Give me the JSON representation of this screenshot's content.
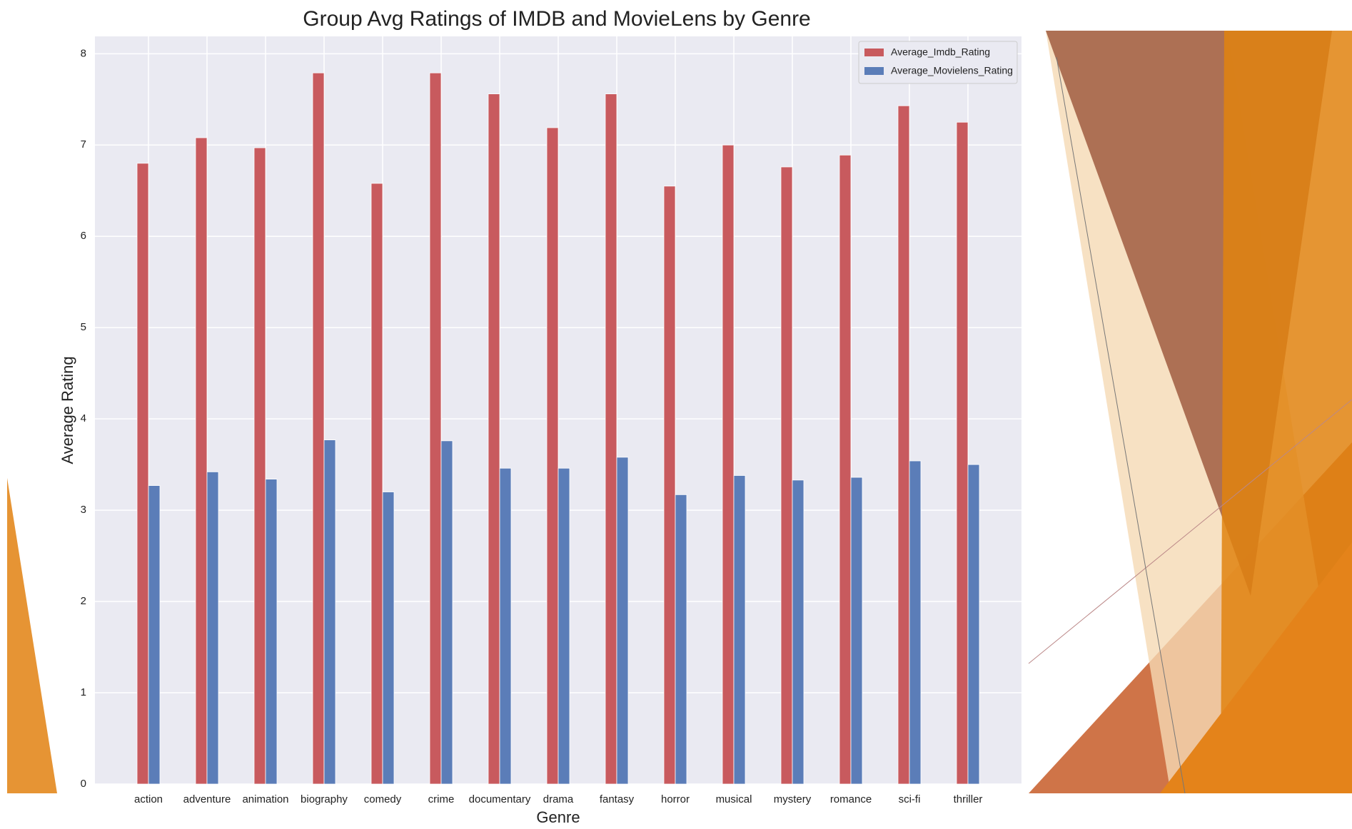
{
  "chart_data": {
    "type": "bar",
    "title": "Group Avg Ratings of IMDB and MovieLens by Genre",
    "x_label": "Genre",
    "y_label": "Average Rating",
    "categories": [
      "action",
      "adventure",
      "animation",
      "biography",
      "comedy",
      "crime",
      "documentary",
      "drama",
      "fantasy",
      "horror",
      "musical",
      "mystery",
      "romance",
      "sci-fi",
      "thriller"
    ],
    "series": [
      {
        "name": "Average_Imdb_Rating",
        "color": "#c85a5e",
        "values": [
          6.8,
          7.08,
          6.97,
          7.79,
          6.58,
          7.79,
          7.56,
          7.19,
          7.56,
          6.55,
          7.0,
          6.76,
          6.89,
          7.43,
          7.25
        ]
      },
      {
        "name": "Average_Movielens_Rating",
        "color": "#5b7db8",
        "values": [
          3.27,
          3.42,
          3.34,
          3.77,
          3.2,
          3.76,
          3.46,
          3.46,
          3.58,
          3.17,
          3.38,
          3.33,
          3.36,
          3.54,
          3.5
        ]
      }
    ],
    "ylim": [
      0,
      8.19
    ],
    "yticks": [
      0,
      1,
      2,
      3,
      4,
      5,
      6,
      7,
      8
    ],
    "grid": true,
    "legend": "upper right"
  }
}
